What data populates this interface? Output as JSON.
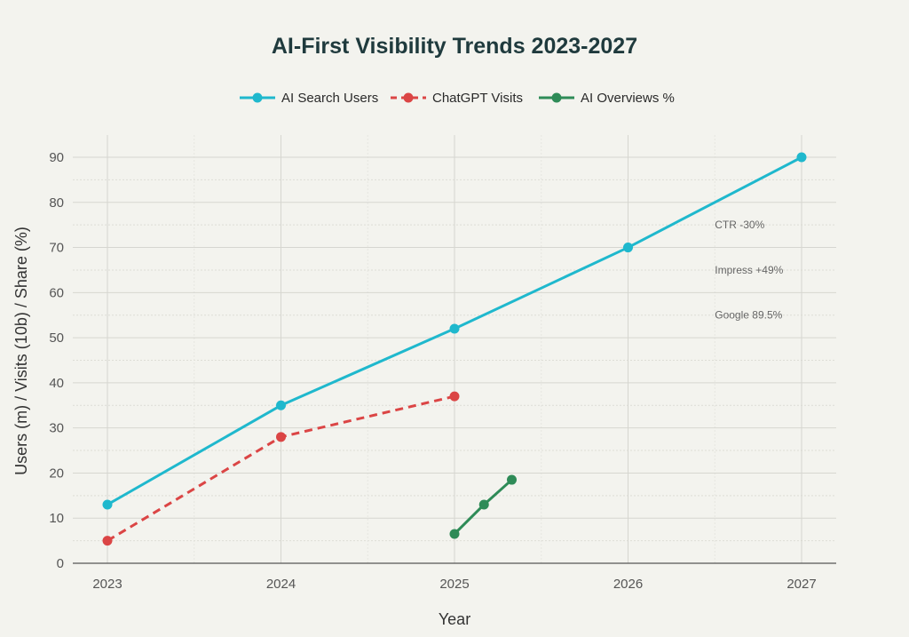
{
  "chart_data": {
    "type": "line",
    "title": "AI-First Visibility Trends 2023-2027",
    "xlabel": "Year",
    "ylabel": "Users (m) / Visits (10b) / Share (%)",
    "xlim": [
      2022.8,
      2027.2
    ],
    "ylim": [
      0,
      95
    ],
    "xticks": [
      2023,
      2024,
      2025,
      2026,
      2027
    ],
    "yticks": [
      0,
      10,
      20,
      30,
      40,
      50,
      60,
      70,
      80,
      90
    ],
    "grid": true,
    "legend_position": "top",
    "series": [
      {
        "name": "AI Search Users",
        "color": "#1fb8cd",
        "dash": "solid",
        "x": [
          2023,
          2024,
          2025,
          2026,
          2027
        ],
        "y": [
          13,
          35,
          52,
          70,
          90
        ]
      },
      {
        "name": "ChatGPT Visits",
        "color": "#db4545",
        "dash": "dashed",
        "x": [
          2023,
          2024,
          2025
        ],
        "y": [
          5,
          28,
          37
        ]
      },
      {
        "name": "AI Overviews %",
        "color": "#2e8b57",
        "dash": "solid",
        "x": [
          2025,
          2025.17,
          2025.33
        ],
        "y": [
          6.5,
          13,
          18.5
        ]
      }
    ],
    "annotations": [
      {
        "text": "CTR -30%",
        "x": 2026.5,
        "y": 75
      },
      {
        "text": "Impress +49%",
        "x": 2026.5,
        "y": 65
      },
      {
        "text": "Google 89.5%",
        "x": 2026.5,
        "y": 55
      }
    ]
  }
}
